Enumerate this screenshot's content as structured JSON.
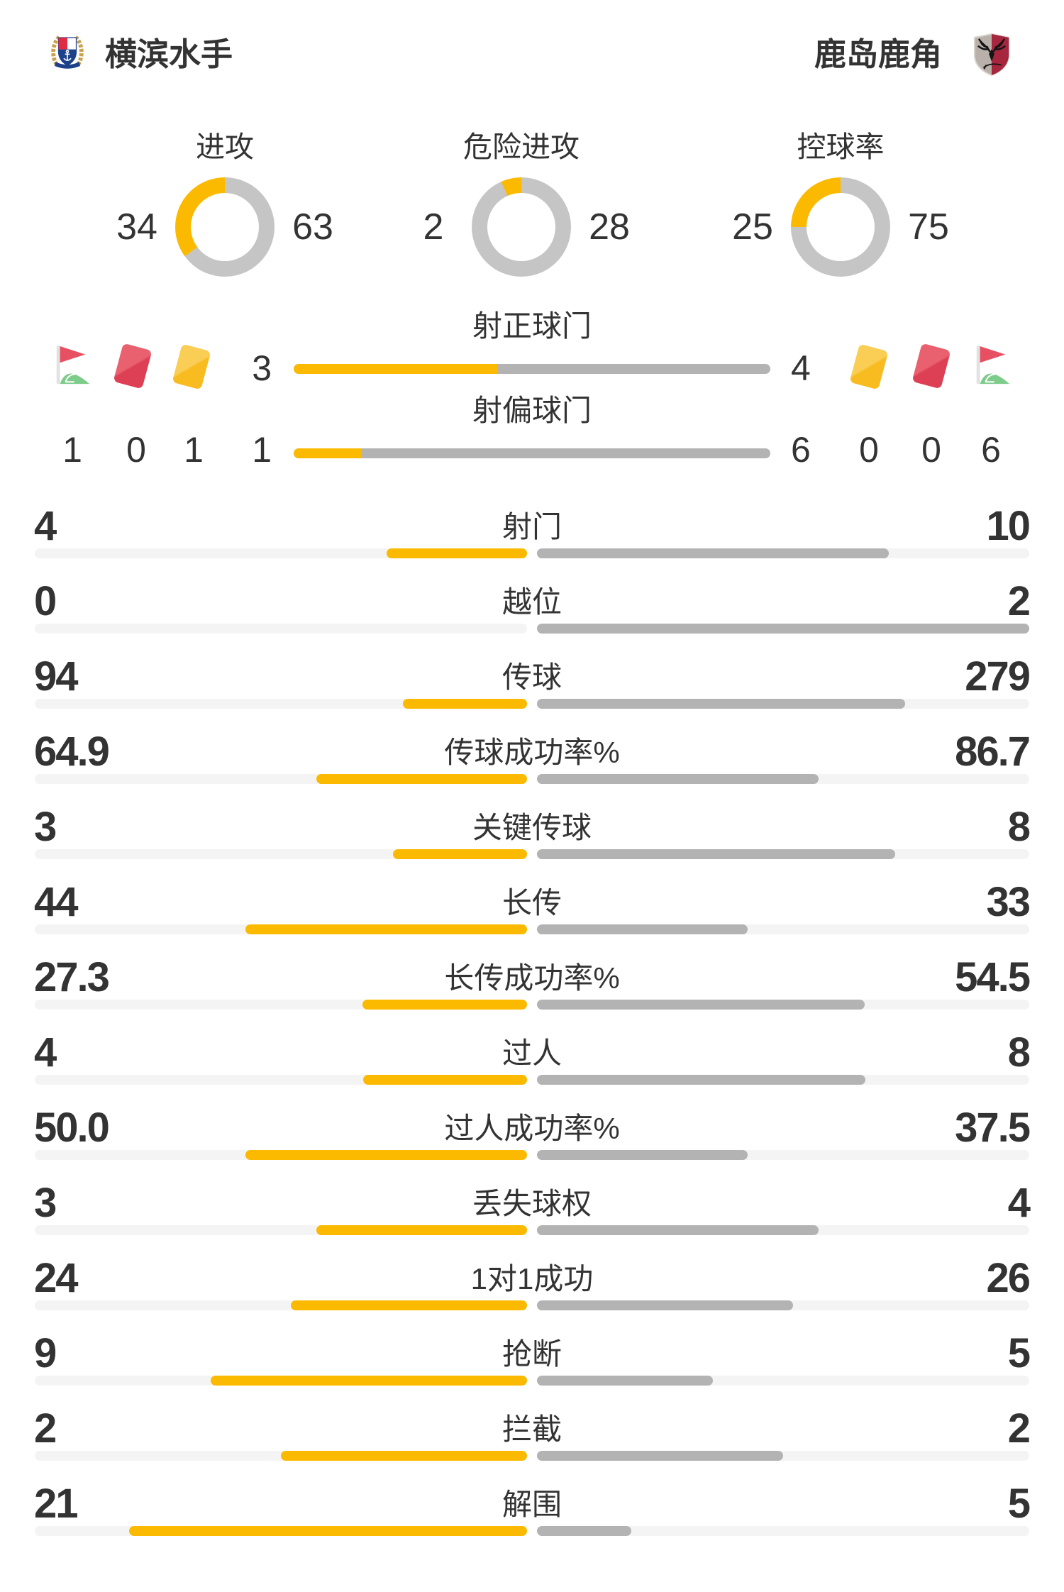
{
  "header": {
    "home_team": "横滨水手",
    "away_team": "鹿岛鹿角"
  },
  "discipline": {
    "home": {
      "corner_kicks": "1",
      "red_cards": "0",
      "yellow_cards": "1"
    },
    "away": {
      "yellow_cards": "0",
      "red_cards": "0",
      "corner_kicks": "6"
    }
  },
  "chart_data": [
    {
      "type": "pie",
      "style": "donut",
      "title": "进攻",
      "categories": [
        "横滨水手",
        "鹿岛鹿角"
      ],
      "values": [
        34,
        63
      ],
      "colors": [
        "#FBBA00",
        "#C5C5C5"
      ],
      "direction": "home-counterclockwise-from-top"
    },
    {
      "type": "pie",
      "style": "donut",
      "title": "危险进攻",
      "categories": [
        "横滨水手",
        "鹿岛鹿角"
      ],
      "values": [
        2,
        28
      ],
      "colors": [
        "#FBBA00",
        "#C5C5C5"
      ],
      "direction": "home-counterclockwise-from-top"
    },
    {
      "type": "pie",
      "style": "donut",
      "title": "控球率",
      "categories": [
        "横滨水手",
        "鹿岛鹿角"
      ],
      "values": [
        25,
        75
      ],
      "colors": [
        "#FBBA00",
        "#C5C5C5"
      ],
      "direction": "home-counterclockwise-from-top"
    },
    {
      "type": "bar",
      "style": "single-shared-bar",
      "title": "射正球门",
      "categories": [
        "横滨水手",
        "鹿岛鹿角"
      ],
      "values": [
        3,
        4
      ]
    },
    {
      "type": "bar",
      "style": "single-shared-bar",
      "title": "射偏球门",
      "categories": [
        "横滨水手",
        "鹿岛鹿角"
      ],
      "values": [
        1,
        6
      ]
    },
    {
      "type": "bar",
      "style": "mirrored-center-split",
      "title": "比赛统计",
      "categories": [
        "射门",
        "越位",
        "传球",
        "传球成功率%",
        "关键传球",
        "长传",
        "长传成功率%",
        "过人",
        "过人成功率%",
        "丢失球权",
        "1对1成功",
        "抢断",
        "拦截",
        "解围"
      ],
      "series": [
        {
          "name": "横滨水手",
          "values": [
            4,
            0,
            94,
            64.9,
            3,
            44,
            27.3,
            4,
            50.0,
            3,
            24,
            9,
            2,
            21
          ]
        },
        {
          "name": "鹿岛鹿角",
          "values": [
            10,
            2,
            279,
            86.7,
            8,
            33,
            54.5,
            8,
            37.5,
            4,
            26,
            5,
            2,
            5
          ]
        }
      ],
      "display": {
        "home": [
          "4",
          "0",
          "94",
          "64.9",
          "3",
          "44",
          "27.3",
          "4",
          "50.0",
          "3",
          "24",
          "9",
          "2",
          "21"
        ],
        "away": [
          "10",
          "2",
          "279",
          "86.7",
          "8",
          "33",
          "54.5",
          "8",
          "37.5",
          "4",
          "26",
          "5",
          "2",
          "5"
        ]
      },
      "bar_rule": "fill fraction = value / (home + away)"
    }
  ],
  "colors": {
    "accent": "#FBBA00",
    "bar_gray": "#B3B3B3",
    "donut_gray": "#C5C5C5",
    "track": "#F4F4F4",
    "text": "#333333",
    "card_red": "#DF4557",
    "card_yellow": "#F9BE2C",
    "flag_red": "#E75062",
    "flag_green": "#7ECC8A"
  }
}
